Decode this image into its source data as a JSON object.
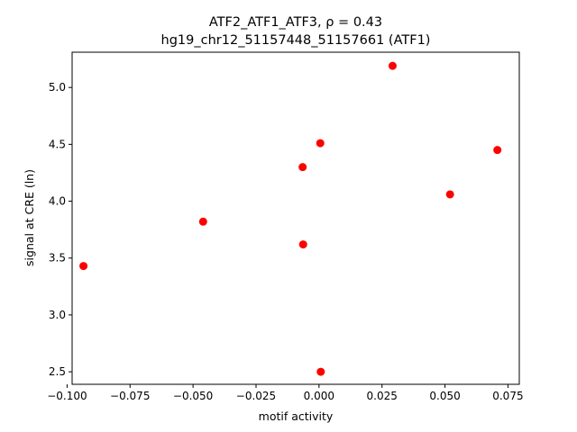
{
  "chart_data": {
    "type": "scatter",
    "title_line1": "ATF2_ATF1_ATF3, ρ = 0.43",
    "title_line2": "hg19_chr12_51157448_51157661 (ATF1)",
    "xlabel": "motif activity",
    "ylabel": "signal at CRE (ln)",
    "xlim": [
      -0.098,
      0.0795
    ],
    "ylim": [
      2.39,
      5.31
    ],
    "xticks": [
      -0.1,
      -0.075,
      -0.05,
      -0.025,
      0.0,
      0.025,
      0.05,
      0.075
    ],
    "xtick_labels": [
      "−0.100",
      "−0.075",
      "−0.050",
      "−0.025",
      "0.000",
      "0.025",
      "0.050",
      "0.075"
    ],
    "yticks": [
      2.5,
      3.0,
      3.5,
      4.0,
      4.5,
      5.0
    ],
    "ytick_labels": [
      "2.5",
      "3.0",
      "3.5",
      "4.0",
      "4.5",
      "5.0"
    ],
    "marker_color": "#ff0000",
    "grid": false,
    "points": [
      {
        "x": -0.0935,
        "y": 3.43
      },
      {
        "x": -0.046,
        "y": 3.82
      },
      {
        "x": -0.0065,
        "y": 4.3
      },
      {
        "x": -0.0063,
        "y": 3.62
      },
      {
        "x": 0.0005,
        "y": 4.51
      },
      {
        "x": 0.0007,
        "y": 2.5
      },
      {
        "x": 0.0292,
        "y": 5.19
      },
      {
        "x": 0.052,
        "y": 4.06
      },
      {
        "x": 0.0708,
        "y": 4.45
      }
    ]
  }
}
